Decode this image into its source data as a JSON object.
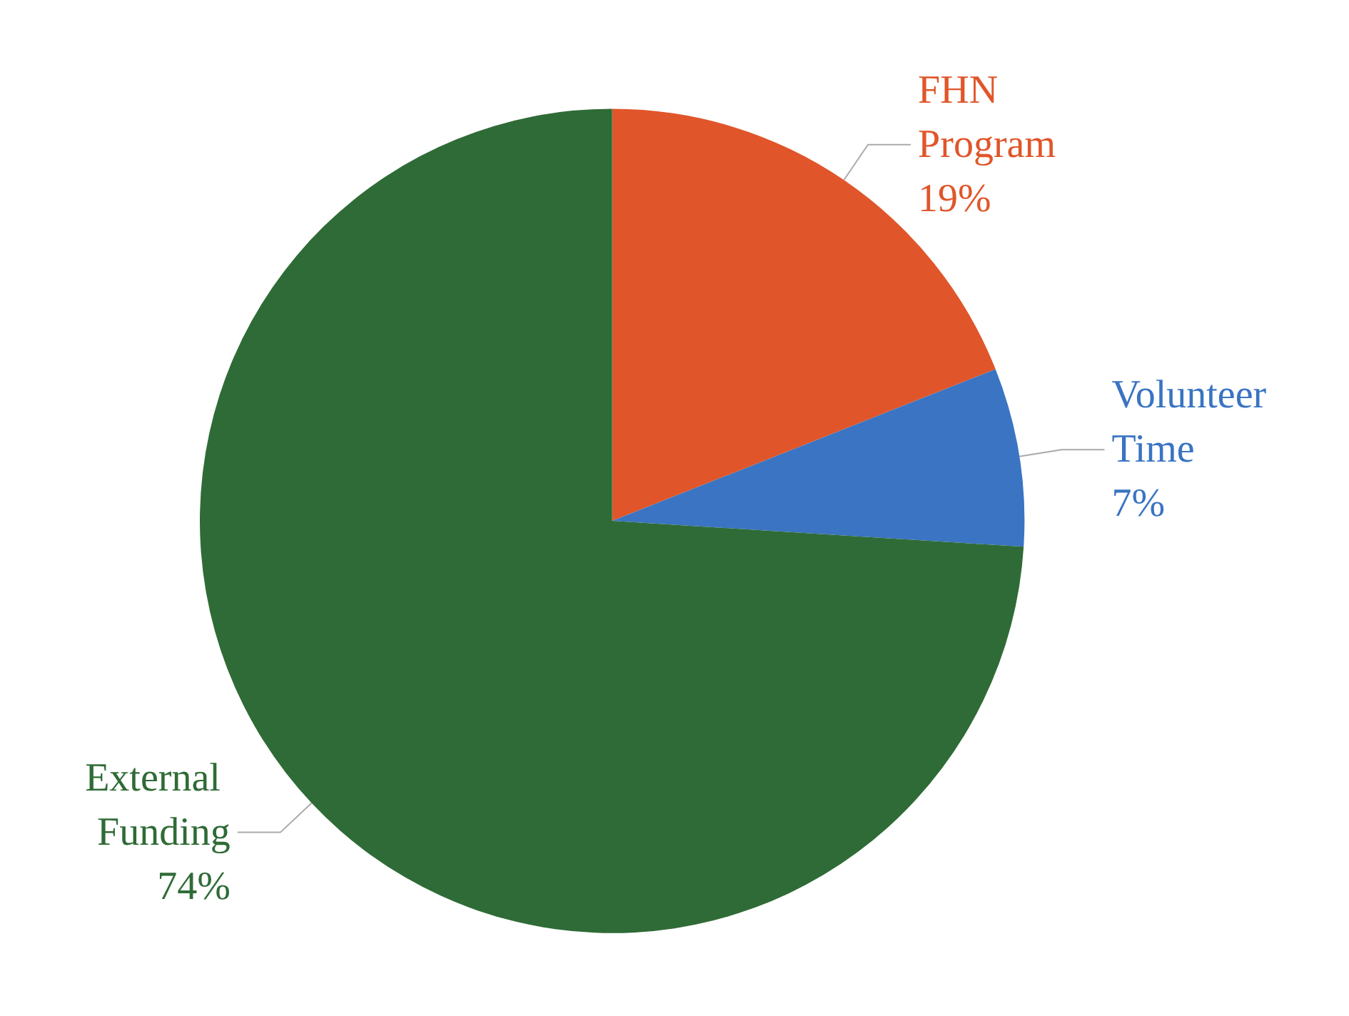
{
  "chart_data": {
    "type": "pie",
    "categories": [
      "FHN Program",
      "Volunteer Time",
      "External Funding"
    ],
    "values": [
      19,
      7,
      74
    ],
    "colors": [
      "#e0562a",
      "#3a74c2",
      "#2f6b36"
    ],
    "value_labels": [
      "19%",
      "7%",
      "74%"
    ]
  }
}
